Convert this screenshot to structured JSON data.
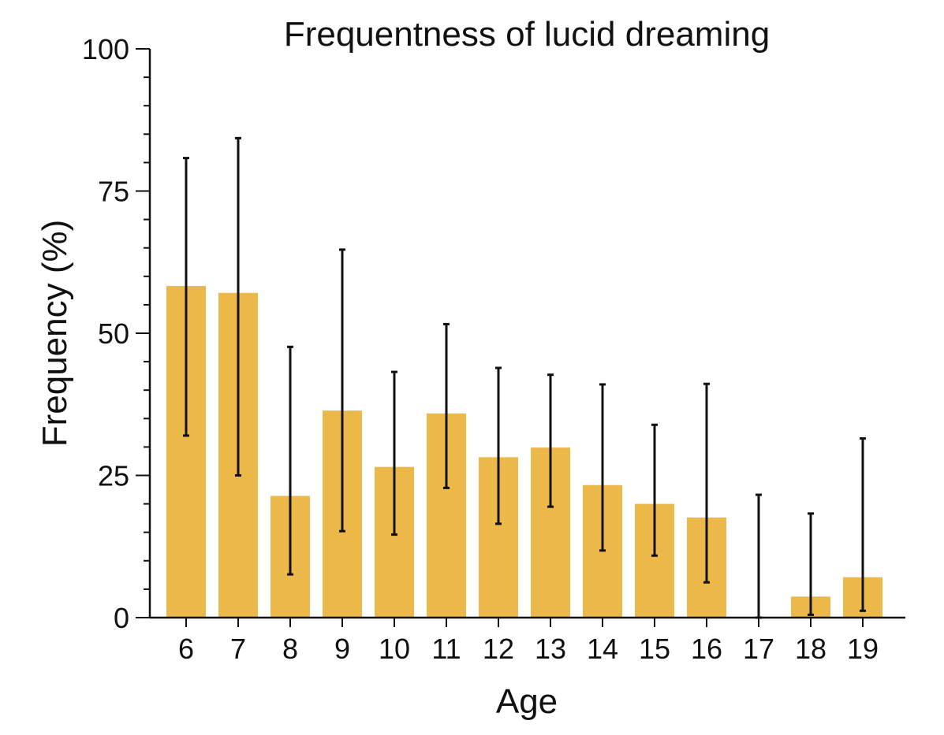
{
  "chart_data": {
    "type": "bar",
    "title": "Frequentness of lucid dreaming",
    "xlabel": "Age",
    "ylabel": "Frequency (%)",
    "ylim": [
      0,
      100
    ],
    "yticks": [
      0,
      25,
      50,
      75,
      100
    ],
    "yminor_step": 5,
    "categories": [
      "6",
      "7",
      "8",
      "9",
      "10",
      "11",
      "12",
      "13",
      "14",
      "15",
      "16",
      "17",
      "18",
      "19"
    ],
    "values": [
      58.3,
      57.1,
      21.4,
      36.4,
      26.5,
      35.9,
      28.2,
      29.9,
      23.3,
      20.0,
      17.6,
      0,
      3.7,
      7.1
    ],
    "error_low": [
      32.0,
      25.0,
      7.6,
      15.2,
      14.6,
      22.8,
      16.5,
      19.5,
      11.8,
      10.9,
      6.2,
      0,
      0.5,
      1.2
    ],
    "error_high": [
      80.8,
      84.3,
      47.6,
      64.7,
      43.2,
      51.6,
      43.9,
      42.7,
      41.0,
      33.9,
      41.1,
      21.6,
      18.3,
      31.5
    ],
    "bar_color": "#ecb84a",
    "error_bar_color": "#111111",
    "grid": false,
    "legend": false
  }
}
